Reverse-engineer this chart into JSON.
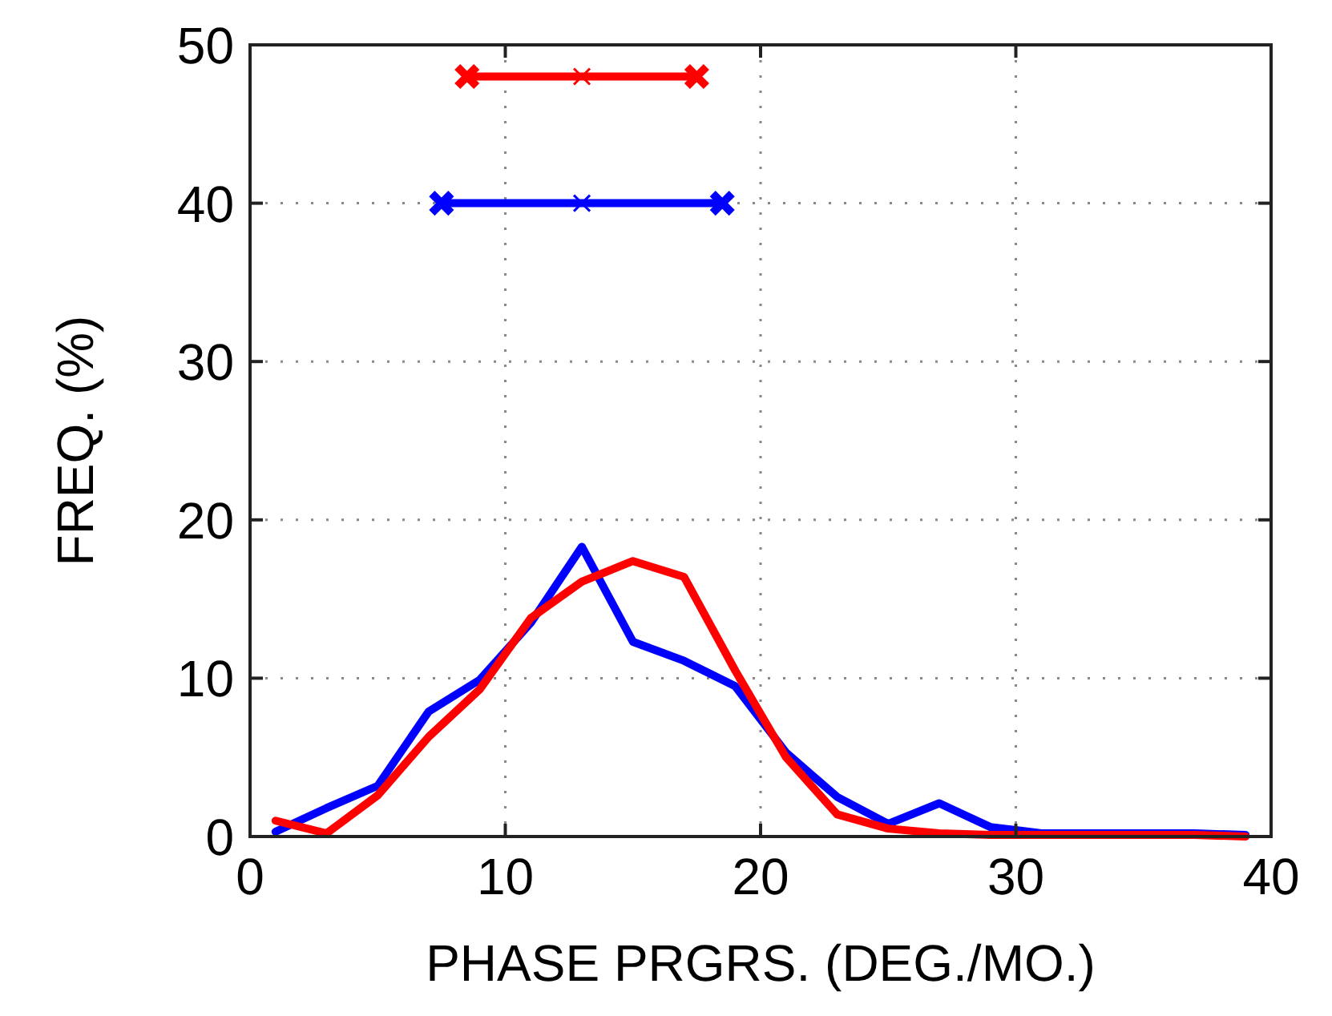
{
  "chart_data": {
    "type": "line",
    "xlabel": "PHASE PRGRS. (DEG./MO.)",
    "ylabel": "FREQ. (%)",
    "xlim": [
      0,
      40
    ],
    "xticks": [
      0,
      10,
      20,
      30,
      40
    ],
    "ylim": [
      0,
      50
    ],
    "yticks": [
      0,
      10,
      20,
      30,
      40,
      50
    ],
    "grid": true,
    "series": [
      {
        "color": "#0000ff",
        "x": [
          1,
          3,
          5,
          7,
          9,
          11,
          13,
          15,
          17,
          19,
          21,
          23,
          25,
          27,
          29,
          31,
          33,
          35,
          37,
          39
        ],
        "values": [
          0.3,
          1.8,
          3.2,
          7.9,
          9.9,
          13.5,
          18.3,
          12.3,
          11.1,
          9.5,
          5.3,
          2.5,
          0.8,
          2.1,
          0.6,
          0.2,
          0.2,
          0.2,
          0.2,
          0.1
        ]
      },
      {
        "color": "#ff0000",
        "x": [
          1,
          3,
          5,
          7,
          9,
          11,
          13,
          15,
          17,
          19,
          21,
          23,
          25,
          27,
          29,
          31,
          33,
          35,
          37,
          39
        ],
        "values": [
          1.0,
          0.2,
          2.6,
          6.3,
          9.3,
          13.8,
          16.1,
          17.4,
          16.4,
          10.5,
          5.0,
          1.4,
          0.5,
          0.2,
          0.1,
          0.1,
          0.1,
          0.1,
          0.1,
          0
        ]
      },
      {
        "color": "#ff0000",
        "marker": "cross",
        "x": [
          8.5,
          13,
          17.5
        ],
        "values": [
          48,
          48,
          48
        ]
      },
      {
        "color": "#0000ff",
        "marker": "cross",
        "x": [
          7.5,
          13,
          18.5
        ],
        "values": [
          40,
          40,
          40
        ]
      }
    ]
  }
}
